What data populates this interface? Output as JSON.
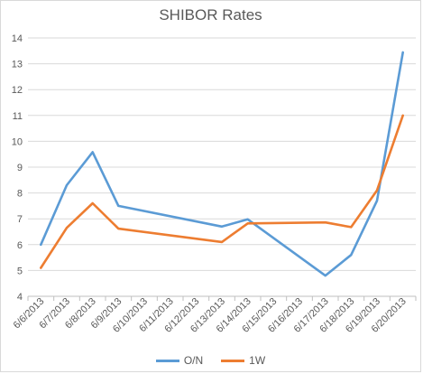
{
  "chart_data": {
    "type": "line",
    "title": "SHIBOR Rates",
    "xlabel": "",
    "ylabel": "",
    "categories": [
      "6/6/2013",
      "6/7/2013",
      "6/8/2013",
      "6/9/2013",
      "6/10/2013",
      "6/11/2013",
      "6/12/2013",
      "6/13/2013",
      "6/14/2013",
      "6/15/2013",
      "6/16/2013",
      "6/17/2013",
      "6/18/2013",
      "6/19/2013",
      "6/20/2013"
    ],
    "ylim": [
      4,
      14
    ],
    "yticks": [
      4,
      5,
      6,
      7,
      8,
      9,
      10,
      11,
      12,
      13,
      14
    ],
    "grid": true,
    "legend": "bottom",
    "series": [
      {
        "name": "O/N",
        "color": "#5B9BD5",
        "points": [
          {
            "x": "6/6/2013",
            "y": 6.0
          },
          {
            "x": "6/7/2013",
            "y": 8.3
          },
          {
            "x": "6/8/2013",
            "y": 9.58
          },
          {
            "x": "6/9/2013",
            "y": 7.5
          },
          {
            "x": "6/13/2013",
            "y": 6.7
          },
          {
            "x": "6/14/2013",
            "y": 6.98
          },
          {
            "x": "6/17/2013",
            "y": 4.8
          },
          {
            "x": "6/18/2013",
            "y": 5.6
          },
          {
            "x": "6/19/2013",
            "y": 7.7
          },
          {
            "x": "6/20/2013",
            "y": 13.44
          }
        ]
      },
      {
        "name": "1W",
        "color": "#ED7D31",
        "points": [
          {
            "x": "6/6/2013",
            "y": 5.1
          },
          {
            "x": "6/7/2013",
            "y": 6.65
          },
          {
            "x": "6/8/2013",
            "y": 7.6
          },
          {
            "x": "6/9/2013",
            "y": 6.62
          },
          {
            "x": "6/13/2013",
            "y": 6.1
          },
          {
            "x": "6/14/2013",
            "y": 6.82
          },
          {
            "x": "6/17/2013",
            "y": 6.86
          },
          {
            "x": "6/18/2013",
            "y": 6.68
          },
          {
            "x": "6/19/2013",
            "y": 8.1
          },
          {
            "x": "6/20/2013",
            "y": 11.0
          }
        ]
      }
    ]
  }
}
